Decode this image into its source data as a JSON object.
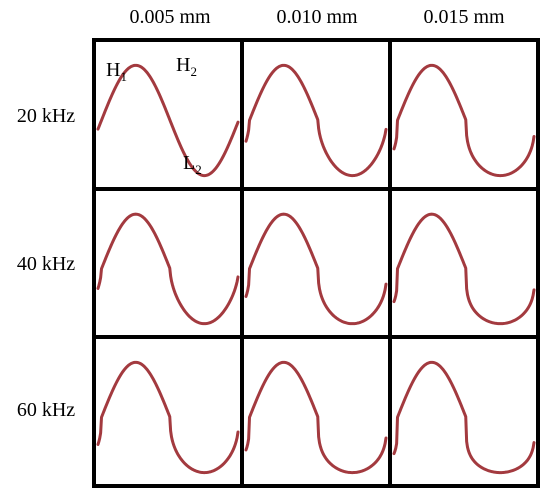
{
  "columns": [
    "0.005 mm",
    "0.010 mm",
    "0.015 mm"
  ],
  "rows": [
    "20 kHz",
    "40 kHz",
    "60 kHz"
  ],
  "peak_labels": {
    "h1": {
      "letter": "H",
      "sub": "1"
    },
    "h2": {
      "letter": "H",
      "sub": "2"
    },
    "l2": {
      "letter": "L",
      "sub": "2"
    }
  },
  "colors": {
    "waveform": "#a33a3f",
    "grid": "#000000"
  }
}
